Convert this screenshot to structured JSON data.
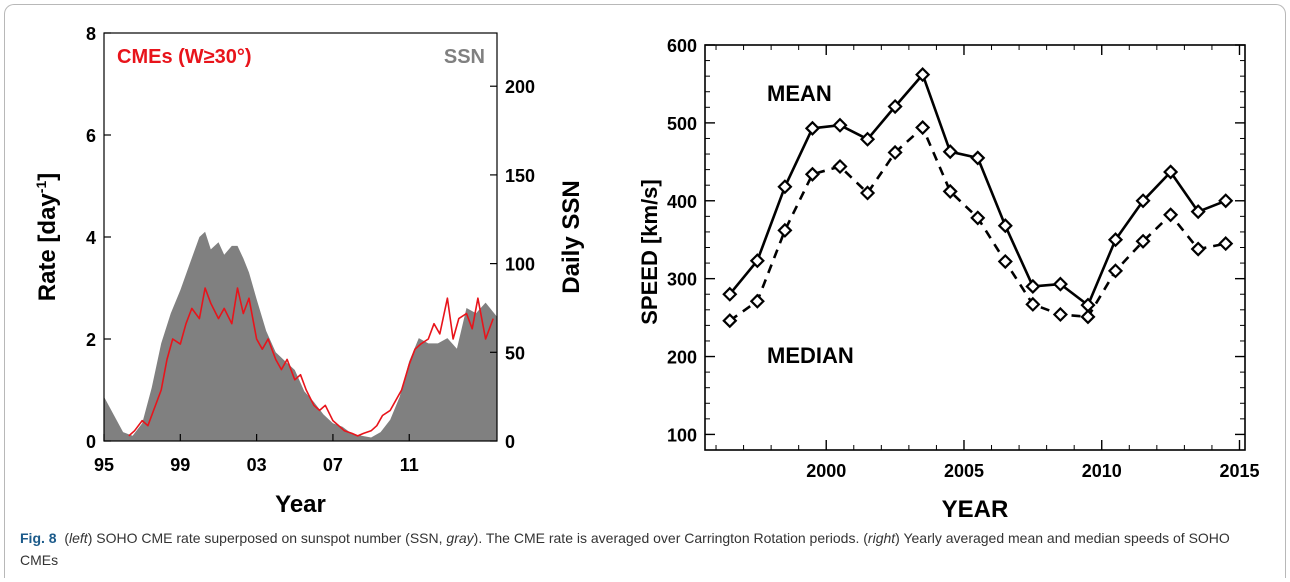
{
  "chart_data": [
    {
      "type": "area",
      "xlabel": "Year",
      "ylabel": "Rate [day",
      "ylabel_sup": "-1",
      "ylabel_close": "]",
      "y2label": "Daily SSN",
      "xlim": [
        1995,
        2015.6
      ],
      "ylim": [
        0,
        8
      ],
      "y2lim": [
        0,
        230
      ],
      "xticks": [
        {
          "value": 1995,
          "label": "95"
        },
        {
          "value": 1999,
          "label": "99"
        },
        {
          "value": 2003,
          "label": "03"
        },
        {
          "value": 2007,
          "label": "07"
        },
        {
          "value": 2011,
          "label": "11"
        }
      ],
      "yticks": [
        "0",
        "2",
        "4",
        "6",
        "8"
      ],
      "y2ticks": [
        "0",
        "50",
        "100",
        "150",
        "200"
      ],
      "legend": [
        {
          "label": "CMEs (W≥30°)",
          "color": "#e8141b",
          "position": "top-left"
        },
        {
          "label": "SSN",
          "color": "#808080",
          "position": "top-right"
        }
      ],
      "series": [
        {
          "name": "SSN",
          "axis": "right",
          "color": "#808080",
          "x": [
            1995.0,
            1995.5,
            1996.0,
            1996.5,
            1997.0,
            1997.5,
            1998.0,
            1998.5,
            1999.0,
            1999.5,
            2000.0,
            2000.3,
            2000.6,
            2001.0,
            2001.3,
            2001.7,
            2002.0,
            2002.3,
            2002.6,
            2003.0,
            2003.5,
            2004.0,
            2004.5,
            2005.0,
            2005.5,
            2006.0,
            2006.5,
            2007.0,
            2007.5,
            2008.0,
            2008.5,
            2009.0,
            2009.5,
            2010.0,
            2010.5,
            2011.0,
            2011.5,
            2012.0,
            2012.5,
            2013.0,
            2013.5,
            2014.0,
            2014.5,
            2015.0,
            2015.6
          ],
          "values": [
            25,
            15,
            5,
            3,
            10,
            30,
            55,
            72,
            85,
            100,
            115,
            118,
            108,
            112,
            105,
            110,
            110,
            103,
            95,
            80,
            62,
            50,
            45,
            40,
            28,
            22,
            15,
            10,
            8,
            4,
            3,
            2,
            5,
            12,
            25,
            45,
            58,
            55,
            55,
            58,
            52,
            75,
            72,
            78,
            70
          ]
        },
        {
          "name": "CMEs (W≥30°)",
          "axis": "left",
          "color": "#e8141b",
          "x": [
            1996.3,
            1996.6,
            1997.0,
            1997.3,
            1997.6,
            1998.0,
            1998.3,
            1998.6,
            1999.0,
            1999.3,
            1999.6,
            2000.0,
            2000.3,
            2000.6,
            2001.0,
            2001.3,
            2001.7,
            2002.0,
            2002.3,
            2002.6,
            2003.0,
            2003.3,
            2003.6,
            2004.0,
            2004.3,
            2004.6,
            2005.0,
            2005.3,
            2005.6,
            2006.0,
            2006.3,
            2006.6,
            2007.0,
            2007.3,
            2007.6,
            2008.0,
            2008.3,
            2008.6,
            2009.0,
            2009.3,
            2009.6,
            2010.0,
            2010.3,
            2010.6,
            2011.0,
            2011.3,
            2011.6,
            2012.0,
            2012.3,
            2012.6,
            2013.0,
            2013.3,
            2013.6,
            2014.0,
            2014.3,
            2014.6,
            2015.0,
            2015.4
          ],
          "values": [
            0.1,
            0.2,
            0.4,
            0.3,
            0.6,
            1.0,
            1.6,
            2.0,
            1.9,
            2.3,
            2.6,
            2.4,
            3.0,
            2.7,
            2.4,
            2.6,
            2.3,
            3.0,
            2.5,
            2.8,
            2.0,
            1.8,
            2.0,
            1.6,
            1.4,
            1.6,
            1.2,
            1.3,
            1.0,
            0.7,
            0.6,
            0.7,
            0.4,
            0.3,
            0.2,
            0.15,
            0.1,
            0.15,
            0.2,
            0.3,
            0.5,
            0.6,
            0.8,
            1.0,
            1.5,
            1.8,
            1.9,
            2.0,
            2.3,
            2.1,
            2.8,
            2.0,
            2.4,
            2.5,
            2.2,
            2.8,
            2.0,
            2.4
          ]
        }
      ]
    },
    {
      "type": "line",
      "xlabel": "YEAR",
      "ylabel": "SPEED [km/s]",
      "xlim": [
        1995.6,
        2015.2
      ],
      "ylim": [
        80,
        600
      ],
      "xticks": [
        "2000",
        "2005",
        "2010",
        "2015"
      ],
      "yticks": [
        "100",
        "200",
        "300",
        "400",
        "500",
        "600"
      ],
      "series": [
        {
          "name": "MEAN",
          "style": "solid",
          "x": [
            1996.5,
            1997.5,
            1998.5,
            1999.5,
            2000.5,
            2001.5,
            2002.5,
            2003.5,
            2004.5,
            2005.5,
            2006.5,
            2007.5,
            2008.5,
            2009.5,
            2010.5,
            2011.5,
            2012.5,
            2013.5,
            2014.5
          ],
          "values": [
            280,
            323,
            418,
            493,
            497,
            479,
            521,
            562,
            463,
            455,
            368,
            290,
            293,
            266,
            350,
            400,
            437,
            386,
            400
          ]
        },
        {
          "name": "MEDIAN",
          "style": "dashed",
          "x": [
            1996.5,
            1997.5,
            1998.5,
            1999.5,
            2000.5,
            2001.5,
            2002.5,
            2003.5,
            2004.5,
            2005.5,
            2006.5,
            2007.5,
            2008.5,
            2009.5,
            2010.5,
            2011.5,
            2012.5,
            2013.5,
            2014.5
          ],
          "values": [
            246,
            271,
            362,
            434,
            444,
            410,
            462,
            494,
            412,
            378,
            322,
            267,
            254,
            251,
            310,
            348,
            382,
            338,
            345
          ]
        }
      ]
    }
  ],
  "caption": {
    "label": "Fig. 8",
    "parts": [
      {
        "text": "(",
        "italic": false
      },
      {
        "text": "left",
        "italic": true
      },
      {
        "text": ") SOHO CME rate superposed on sunspot number (SSN, ",
        "italic": false
      },
      {
        "text": "gray",
        "italic": true
      },
      {
        "text": "). The CME rate is averaged over Carrington Rotation periods. (",
        "italic": false
      },
      {
        "text": "right",
        "italic": true
      },
      {
        "text": ") Yearly averaged mean and median speeds of SOHO CMEs",
        "italic": false
      }
    ]
  }
}
